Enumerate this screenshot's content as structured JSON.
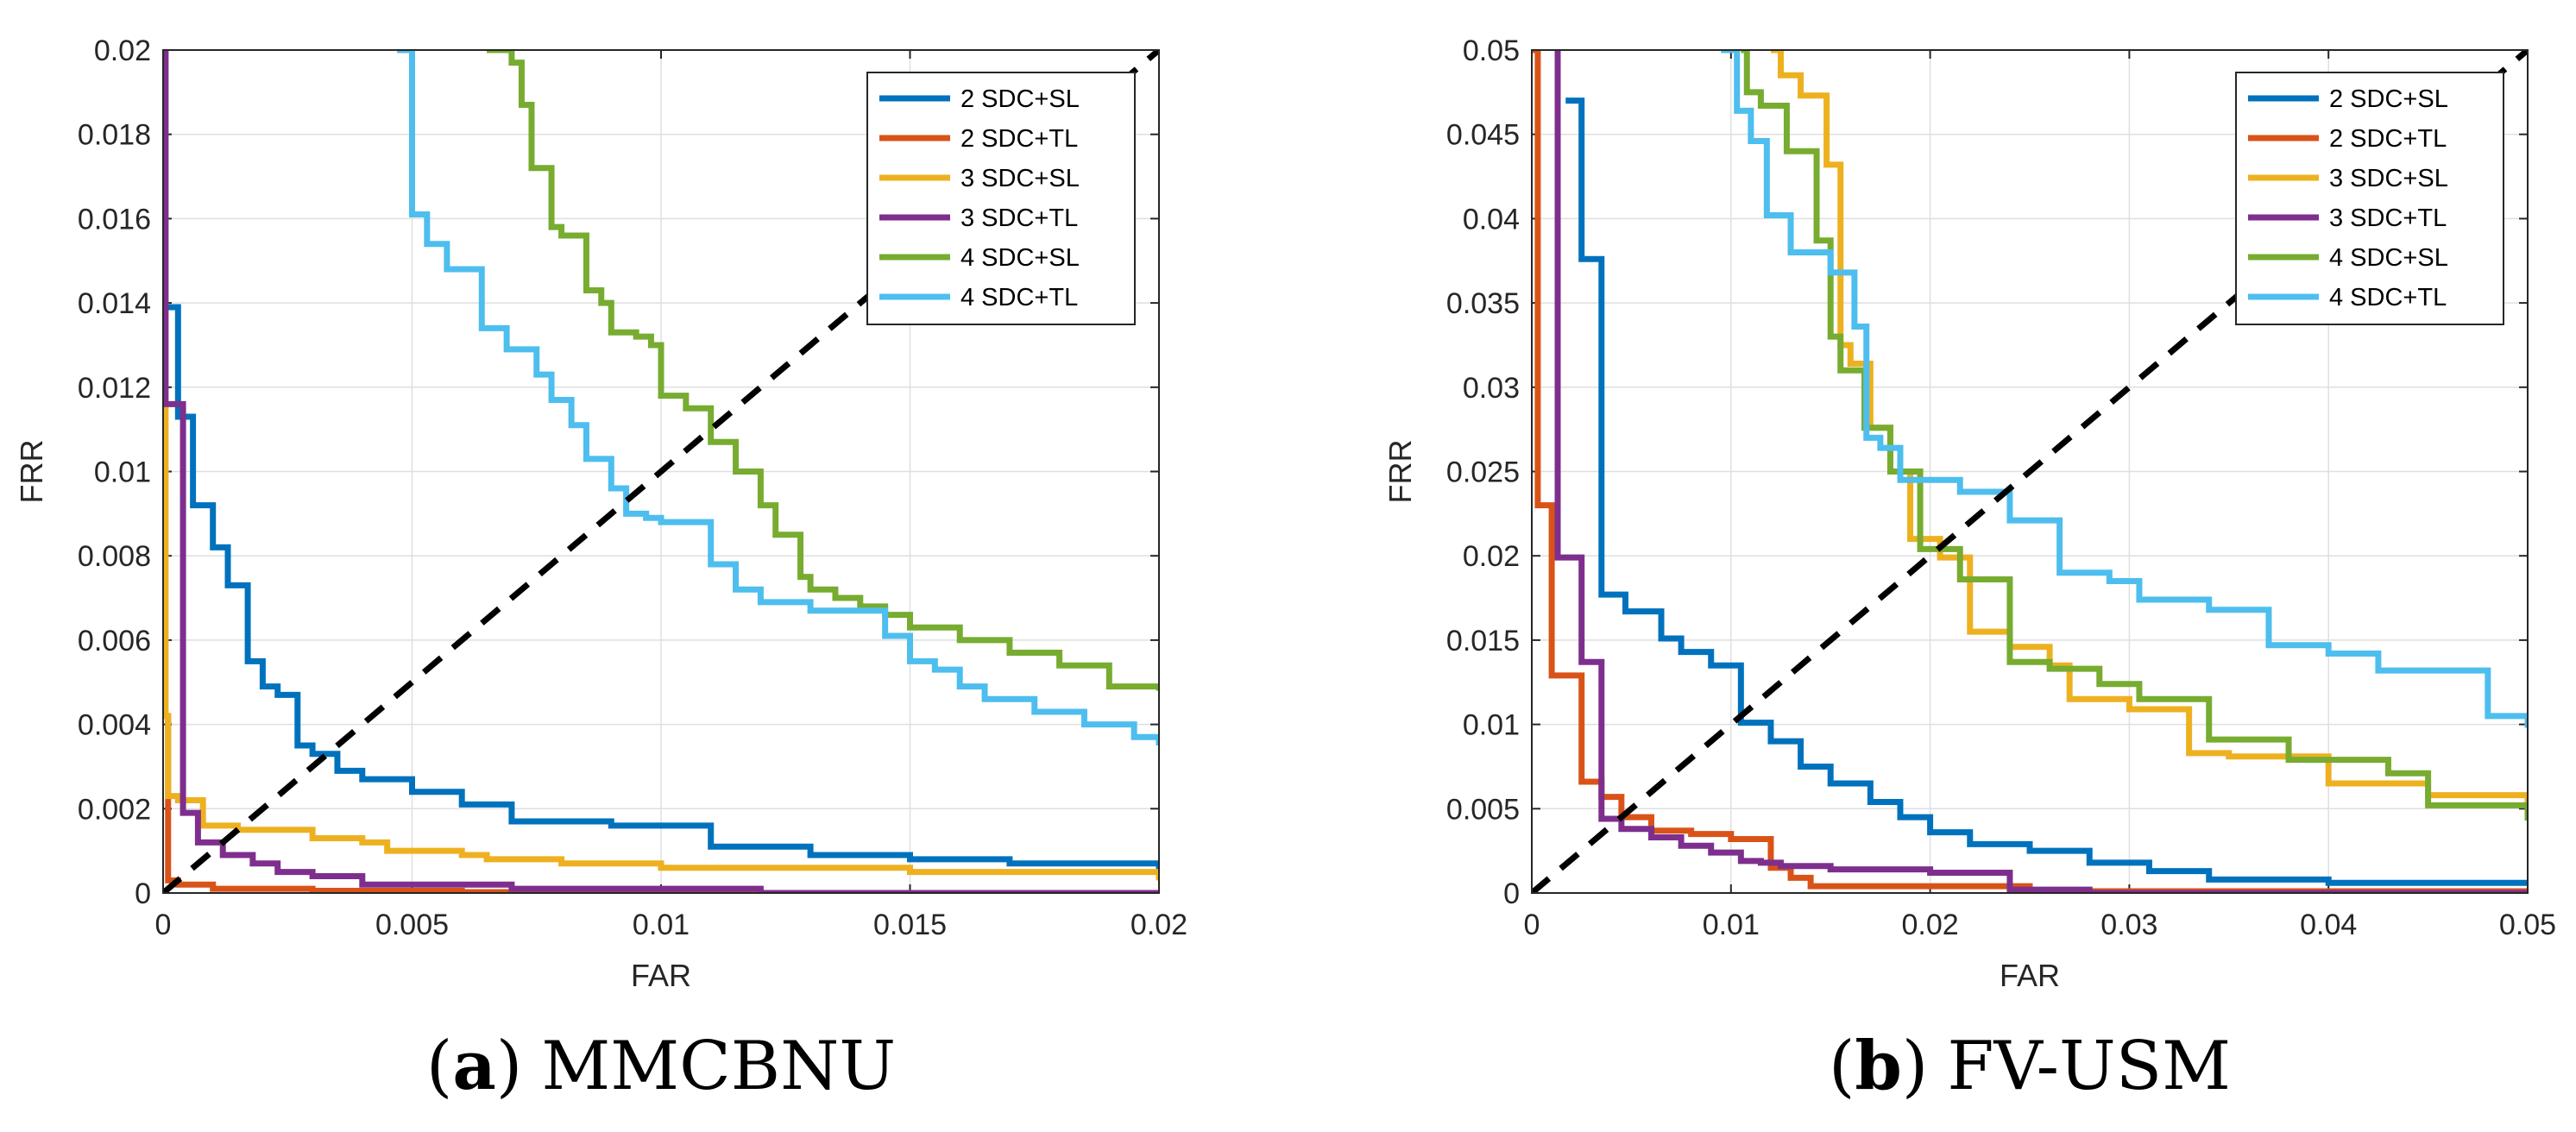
{
  "chart_data": [
    {
      "type": "line",
      "id": "a",
      "caption_letter": "a",
      "caption_prefix": "(",
      "caption_suffix": ")",
      "caption_name": "MMCBNU",
      "xlabel": "FAR",
      "ylabel": "FRR",
      "xlim": [
        0,
        0.02
      ],
      "ylim": [
        0,
        0.02
      ],
      "x_ticks": [
        0,
        0.005,
        0.01,
        0.015,
        0.02
      ],
      "x_tick_labels": [
        "0",
        "0.005",
        "0.01",
        "0.015",
        "0.02"
      ],
      "y_ticks": [
        0,
        0.002,
        0.004,
        0.006,
        0.008,
        0.01,
        0.012,
        0.014,
        0.016,
        0.018,
        0.02
      ],
      "y_tick_labels": [
        "0",
        "0.002",
        "0.004",
        "0.006",
        "0.008",
        "0.01",
        "0.012",
        "0.014",
        "0.016",
        "0.018",
        "0.02"
      ],
      "grid": true,
      "legend_position": "top-right",
      "reference_line": {
        "from": [
          0,
          0
        ],
        "to": [
          0.02,
          0.02
        ],
        "style": "dashed",
        "color": "#000000"
      },
      "series": [
        {
          "name": "2 SDC+SL",
          "color": "#0072BD",
          "x": [
            0,
            0.0003,
            0.0006,
            0.001,
            0.0013,
            0.0017,
            0.002,
            0.0023,
            0.0027,
            0.003,
            0.0035,
            0.004,
            0.005,
            0.006,
            0.007,
            0.009,
            0.011,
            0.013,
            0.015,
            0.017,
            0.02
          ],
          "y": [
            0.0139,
            0.0113,
            0.0092,
            0.0082,
            0.0073,
            0.0055,
            0.0049,
            0.0047,
            0.0035,
            0.0033,
            0.0029,
            0.0027,
            0.0024,
            0.0021,
            0.0017,
            0.0016,
            0.0011,
            0.0009,
            0.0008,
            0.0007,
            0.0004
          ]
        },
        {
          "name": "2 SDC+TL",
          "color": "#D95319",
          "x": [
            0,
            0.0001,
            0.0003,
            0.0005,
            0.001,
            0.003,
            0.006,
            0.01,
            0.02
          ],
          "y": [
            0.0042,
            0.0003,
            0.0002,
            0.0002,
            0.0001,
            5e-05,
            2e-05,
            0.0,
            0.0
          ]
        },
        {
          "name": "3 SDC+SL",
          "color": "#EDB120",
          "x": [
            0,
            5e-05,
            0.0001,
            0.0003,
            0.0008,
            0.0015,
            0.003,
            0.004,
            0.0045,
            0.006,
            0.0065,
            0.008,
            0.01,
            0.015,
            0.02
          ],
          "y": [
            0.0115,
            0.0042,
            0.0023,
            0.0022,
            0.0016,
            0.0015,
            0.0013,
            0.0012,
            0.001,
            0.0009,
            0.0008,
            0.0007,
            0.0006,
            0.0005,
            0.0003
          ]
        },
        {
          "name": "3 SDC+TL",
          "color": "#7E2F8E",
          "x": [
            0,
            5e-05,
            0.0002,
            0.0004,
            0.0007,
            0.0012,
            0.0018,
            0.0023,
            0.003,
            0.004,
            0.006,
            0.007,
            0.012,
            0.02
          ],
          "y": [
            0.02,
            0.0116,
            0.0116,
            0.0019,
            0.0012,
            0.0009,
            0.0007,
            0.0005,
            0.0004,
            0.0002,
            0.0002,
            0.0001,
            0.0,
            0.0
          ]
        },
        {
          "name": "4 SDC+SL",
          "color": "#77AC30",
          "x": [
            0.0065,
            0.007,
            0.0072,
            0.0074,
            0.0078,
            0.008,
            0.0085,
            0.0088,
            0.009,
            0.0095,
            0.0098,
            0.01,
            0.0105,
            0.011,
            0.0115,
            0.012,
            0.0123,
            0.0128,
            0.013,
            0.0135,
            0.014,
            0.0145,
            0.015,
            0.016,
            0.017,
            0.018,
            0.019,
            0.02
          ],
          "y": [
            0.02,
            0.0197,
            0.0187,
            0.0172,
            0.0158,
            0.0156,
            0.0143,
            0.014,
            0.0133,
            0.0132,
            0.013,
            0.0118,
            0.0115,
            0.0107,
            0.01,
            0.0092,
            0.0085,
            0.0075,
            0.0072,
            0.007,
            0.0068,
            0.0066,
            0.0063,
            0.006,
            0.0057,
            0.0054,
            0.0049,
            0.0048
          ]
        },
        {
          "name": "4 SDC+TL",
          "color": "#4DBEEE",
          "x": [
            0.0047,
            0.005,
            0.0053,
            0.0057,
            0.0064,
            0.0069,
            0.0075,
            0.0078,
            0.0082,
            0.0085,
            0.009,
            0.0093,
            0.0097,
            0.01,
            0.011,
            0.0115,
            0.012,
            0.013,
            0.0145,
            0.015,
            0.0155,
            0.016,
            0.0165,
            0.0175,
            0.0185,
            0.0195,
            0.02
          ],
          "y": [
            0.02,
            0.0161,
            0.0154,
            0.0148,
            0.0134,
            0.0129,
            0.0123,
            0.0117,
            0.0111,
            0.0103,
            0.0096,
            0.009,
            0.0089,
            0.0088,
            0.0078,
            0.0072,
            0.0069,
            0.0067,
            0.0061,
            0.0055,
            0.0053,
            0.0049,
            0.0046,
            0.0043,
            0.004,
            0.0037,
            0.0035
          ]
        }
      ]
    },
    {
      "type": "line",
      "id": "b",
      "caption_letter": "b",
      "caption_prefix": "(",
      "caption_suffix": ")",
      "caption_name": "FV-USM",
      "xlabel": "FAR",
      "ylabel": "FRR",
      "xlim": [
        0,
        0.05
      ],
      "ylim": [
        0,
        0.05
      ],
      "x_ticks": [
        0,
        0.01,
        0.02,
        0.03,
        0.04,
        0.05
      ],
      "x_tick_labels": [
        "0",
        "0.01",
        "0.02",
        "0.03",
        "0.04",
        "0.05"
      ],
      "y_ticks": [
        0,
        0.005,
        0.01,
        0.015,
        0.02,
        0.025,
        0.03,
        0.035,
        0.04,
        0.045,
        0.05
      ],
      "y_tick_labels": [
        "0",
        "0.005",
        "0.01",
        "0.015",
        "0.02",
        "0.025",
        "0.03",
        "0.035",
        "0.04",
        "0.045",
        "0.05"
      ],
      "grid": true,
      "legend_position": "top-right",
      "reference_line": {
        "from": [
          0,
          0
        ],
        "to": [
          0.05,
          0.05
        ],
        "style": "dashed",
        "color": "#000000"
      },
      "series": [
        {
          "name": "2 SDC+SL",
          "color": "#0072BD",
          "x": [
            0.0017,
            0.0025,
            0.0035,
            0.0047,
            0.0065,
            0.0075,
            0.009,
            0.0105,
            0.012,
            0.0135,
            0.015,
            0.017,
            0.0185,
            0.02,
            0.022,
            0.025,
            0.028,
            0.031,
            0.034,
            0.04,
            0.05
          ],
          "y": [
            0.047,
            0.0376,
            0.0177,
            0.0167,
            0.0151,
            0.0143,
            0.0135,
            0.0101,
            0.009,
            0.0075,
            0.0065,
            0.0054,
            0.0045,
            0.0036,
            0.0029,
            0.0025,
            0.0018,
            0.0013,
            0.0008,
            0.0006,
            0.0005
          ]
        },
        {
          "name": "2 SDC+TL",
          "color": "#D95319",
          "x": [
            0,
            0.0003,
            0.001,
            0.0025,
            0.0035,
            0.0045,
            0.006,
            0.008,
            0.01,
            0.012,
            0.013,
            0.014,
            0.025,
            0.05
          ],
          "y": [
            0.05,
            0.023,
            0.0129,
            0.0066,
            0.0057,
            0.0045,
            0.0037,
            0.0035,
            0.0032,
            0.0015,
            0.0009,
            0.0004,
            0.0001,
            0.0
          ]
        },
        {
          "name": "3 SDC+SL",
          "color": "#EDB120",
          "x": [
            0.012,
            0.0125,
            0.0135,
            0.0148,
            0.0155,
            0.016,
            0.017,
            0.018,
            0.019,
            0.0205,
            0.022,
            0.024,
            0.026,
            0.027,
            0.03,
            0.033,
            0.035,
            0.04,
            0.045,
            0.05
          ],
          "y": [
            0.05,
            0.0485,
            0.0473,
            0.0432,
            0.0325,
            0.0314,
            0.0276,
            0.025,
            0.021,
            0.0199,
            0.0155,
            0.0146,
            0.0135,
            0.0115,
            0.0109,
            0.0083,
            0.0081,
            0.0065,
            0.0058,
            0.0052
          ]
        },
        {
          "name": "3 SDC+TL",
          "color": "#7E2F8E",
          "x": [
            0.0012,
            0.0013,
            0.0015,
            0.0025,
            0.0035,
            0.0045,
            0.006,
            0.0075,
            0.009,
            0.0105,
            0.0115,
            0.0125,
            0.015,
            0.02,
            0.024,
            0.028,
            0.05
          ],
          "y": [
            0.05,
            0.0199,
            0.0199,
            0.0137,
            0.0044,
            0.0038,
            0.0033,
            0.0028,
            0.0024,
            0.0019,
            0.0018,
            0.0016,
            0.0014,
            0.0012,
            0.0002,
            0.0,
            0.0
          ]
        },
        {
          "name": "4 SDC+SL",
          "color": "#77AC30",
          "x": [
            0.0105,
            0.0108,
            0.0115,
            0.0128,
            0.0143,
            0.015,
            0.0155,
            0.0167,
            0.018,
            0.0195,
            0.0215,
            0.024,
            0.026,
            0.0285,
            0.0305,
            0.034,
            0.038,
            0.043,
            0.045,
            0.05
          ],
          "y": [
            0.05,
            0.0475,
            0.0467,
            0.044,
            0.0387,
            0.033,
            0.031,
            0.0276,
            0.025,
            0.0204,
            0.0186,
            0.0137,
            0.0133,
            0.0124,
            0.0115,
            0.0091,
            0.0079,
            0.0071,
            0.0052,
            0.0043
          ]
        },
        {
          "name": "4 SDC+TL",
          "color": "#4DBEEE",
          "x": [
            0.0095,
            0.0103,
            0.011,
            0.0118,
            0.013,
            0.015,
            0.0162,
            0.0168,
            0.0175,
            0.0185,
            0.0215,
            0.024,
            0.0265,
            0.029,
            0.0305,
            0.034,
            0.037,
            0.04,
            0.0425,
            0.048,
            0.05
          ],
          "y": [
            0.05,
            0.0464,
            0.0446,
            0.0402,
            0.038,
            0.0368,
            0.0336,
            0.027,
            0.0264,
            0.0245,
            0.0238,
            0.0221,
            0.019,
            0.0185,
            0.0174,
            0.0168,
            0.0147,
            0.0142,
            0.0132,
            0.0105,
            0.0098
          ]
        }
      ]
    }
  ]
}
